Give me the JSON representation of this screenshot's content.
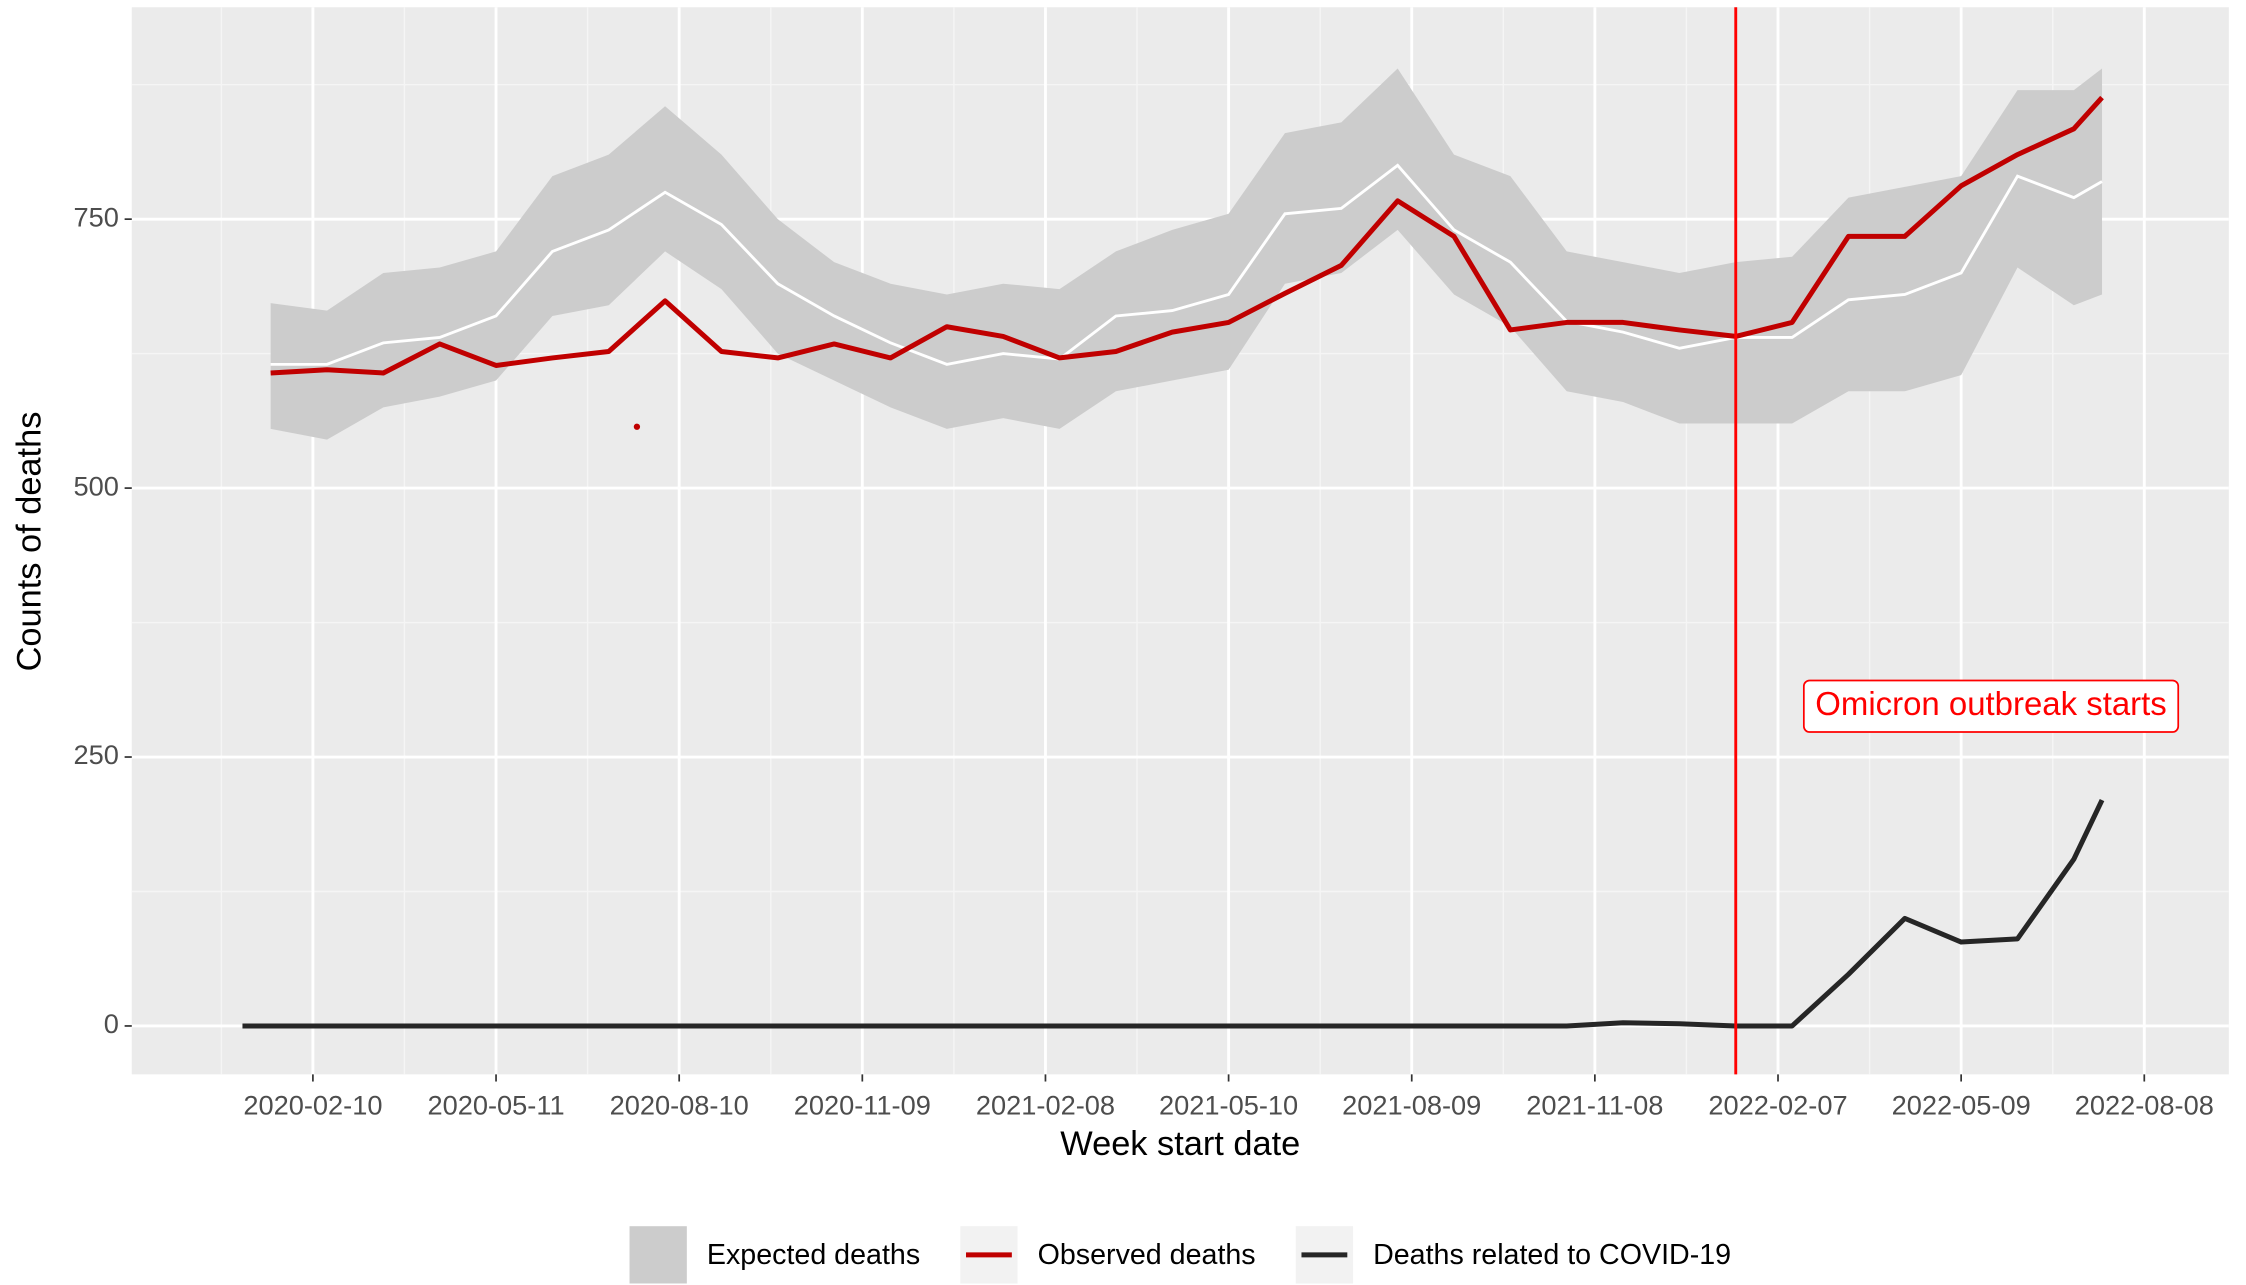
{
  "chart_data": {
    "type": "line",
    "x_label": "Week start date",
    "y_label": "Counts of deaths",
    "xlim": [
      "2019-11-12",
      "2022-09-19"
    ],
    "ylim": [
      -45,
      947
    ],
    "xticks": [
      "2020-02-10",
      "2020-05-11",
      "2020-08-10",
      "2020-11-09",
      "2021-02-08",
      "2021-05-10",
      "2021-08-09",
      "2021-11-08",
      "2022-02-07",
      "2022-05-09",
      "2022-08-08"
    ],
    "yticks": [
      0,
      250,
      500,
      750
    ],
    "grid": true,
    "minor_grid": true,
    "legend_position": "bottom",
    "x": [
      "2020-01-20",
      "2020-02-17",
      "2020-03-16",
      "2020-04-13",
      "2020-05-11",
      "2020-06-08",
      "2020-07-06",
      "2020-08-03",
      "2020-08-31",
      "2020-09-28",
      "2020-10-26",
      "2020-11-23",
      "2020-12-21",
      "2021-01-18",
      "2021-02-15",
      "2021-03-15",
      "2021-04-12",
      "2021-05-10",
      "2021-06-07",
      "2021-07-05",
      "2021-08-02",
      "2021-08-30",
      "2021-09-27",
      "2021-10-25",
      "2021-11-22",
      "2021-12-20",
      "2022-01-17",
      "2022-02-14",
      "2022-03-14",
      "2022-04-11",
      "2022-05-09",
      "2022-06-06",
      "2022-07-04",
      "2022-07-18"
    ],
    "series": [
      {
        "name": "Expected deaths",
        "kind": "band",
        "color": "#cccccc",
        "line_color": "#ffffff",
        "values": [
          615,
          615,
          635,
          640,
          660,
          720,
          740,
          775,
          745,
          690,
          660,
          635,
          615,
          625,
          620,
          660,
          665,
          680,
          755,
          760,
          800,
          740,
          710,
          655,
          645,
          630,
          640,
          640,
          675,
          680,
          700,
          790,
          770,
          785
        ],
        "lower": [
          555,
          545,
          575,
          585,
          600,
          660,
          670,
          720,
          685,
          625,
          600,
          575,
          555,
          565,
          555,
          590,
          600,
          610,
          690,
          700,
          740,
          680,
          650,
          590,
          580,
          560,
          560,
          560,
          590,
          590,
          605,
          705,
          670,
          680
        ],
        "upper": [
          672,
          665,
          700,
          705,
          720,
          790,
          810,
          855,
          810,
          750,
          710,
          690,
          680,
          690,
          685,
          720,
          740,
          755,
          830,
          840,
          890,
          810,
          790,
          720,
          710,
          700,
          710,
          715,
          770,
          780,
          790,
          870,
          870,
          890
        ]
      },
      {
        "name": "Observed deaths",
        "kind": "line",
        "color": "#c00000",
        "values": [
          607,
          610,
          607,
          634,
          614,
          621,
          627,
          674,
          627,
          621,
          634,
          621,
          650,
          641,
          621,
          627,
          645,
          654,
          681,
          707,
          767,
          734,
          647,
          654,
          654,
          647,
          641,
          654,
          734,
          734,
          781,
          810,
          834,
          863
        ]
      },
      {
        "name": "Deaths related to COVID-19",
        "kind": "line",
        "color": "#262626",
        "x": [
          "2020-01-06",
          "2020-01-20",
          "2020-02-17",
          "2020-03-16",
          "2020-04-13",
          "2020-05-11",
          "2020-06-08",
          "2020-07-06",
          "2020-08-03",
          "2020-08-31",
          "2020-09-28",
          "2020-10-26",
          "2020-11-23",
          "2020-12-21",
          "2021-01-18",
          "2021-02-15",
          "2021-03-15",
          "2021-04-12",
          "2021-05-10",
          "2021-06-07",
          "2021-07-05",
          "2021-08-02",
          "2021-08-30",
          "2021-09-27",
          "2021-10-25",
          "2021-11-22",
          "2021-12-20",
          "2022-01-17",
          "2022-02-14",
          "2022-03-14",
          "2022-04-11",
          "2022-05-09",
          "2022-06-06",
          "2022-07-04",
          "2022-07-18"
        ],
        "values": [
          0,
          0,
          0,
          0,
          0,
          0,
          0,
          0,
          0,
          0,
          0,
          0,
          0,
          0,
          0,
          0,
          0,
          0,
          0,
          0,
          0,
          0,
          0,
          0,
          0,
          3,
          2,
          0,
          0,
          48,
          100,
          78,
          81,
          155,
          210
        ]
      }
    ],
    "extra_points": [
      {
        "x": "2020-07-20",
        "y": 557,
        "color": "#c00000"
      }
    ],
    "vline": {
      "x": "2022-01-17",
      "color": "#ff0000",
      "label": "Omicron outbreak starts"
    }
  }
}
